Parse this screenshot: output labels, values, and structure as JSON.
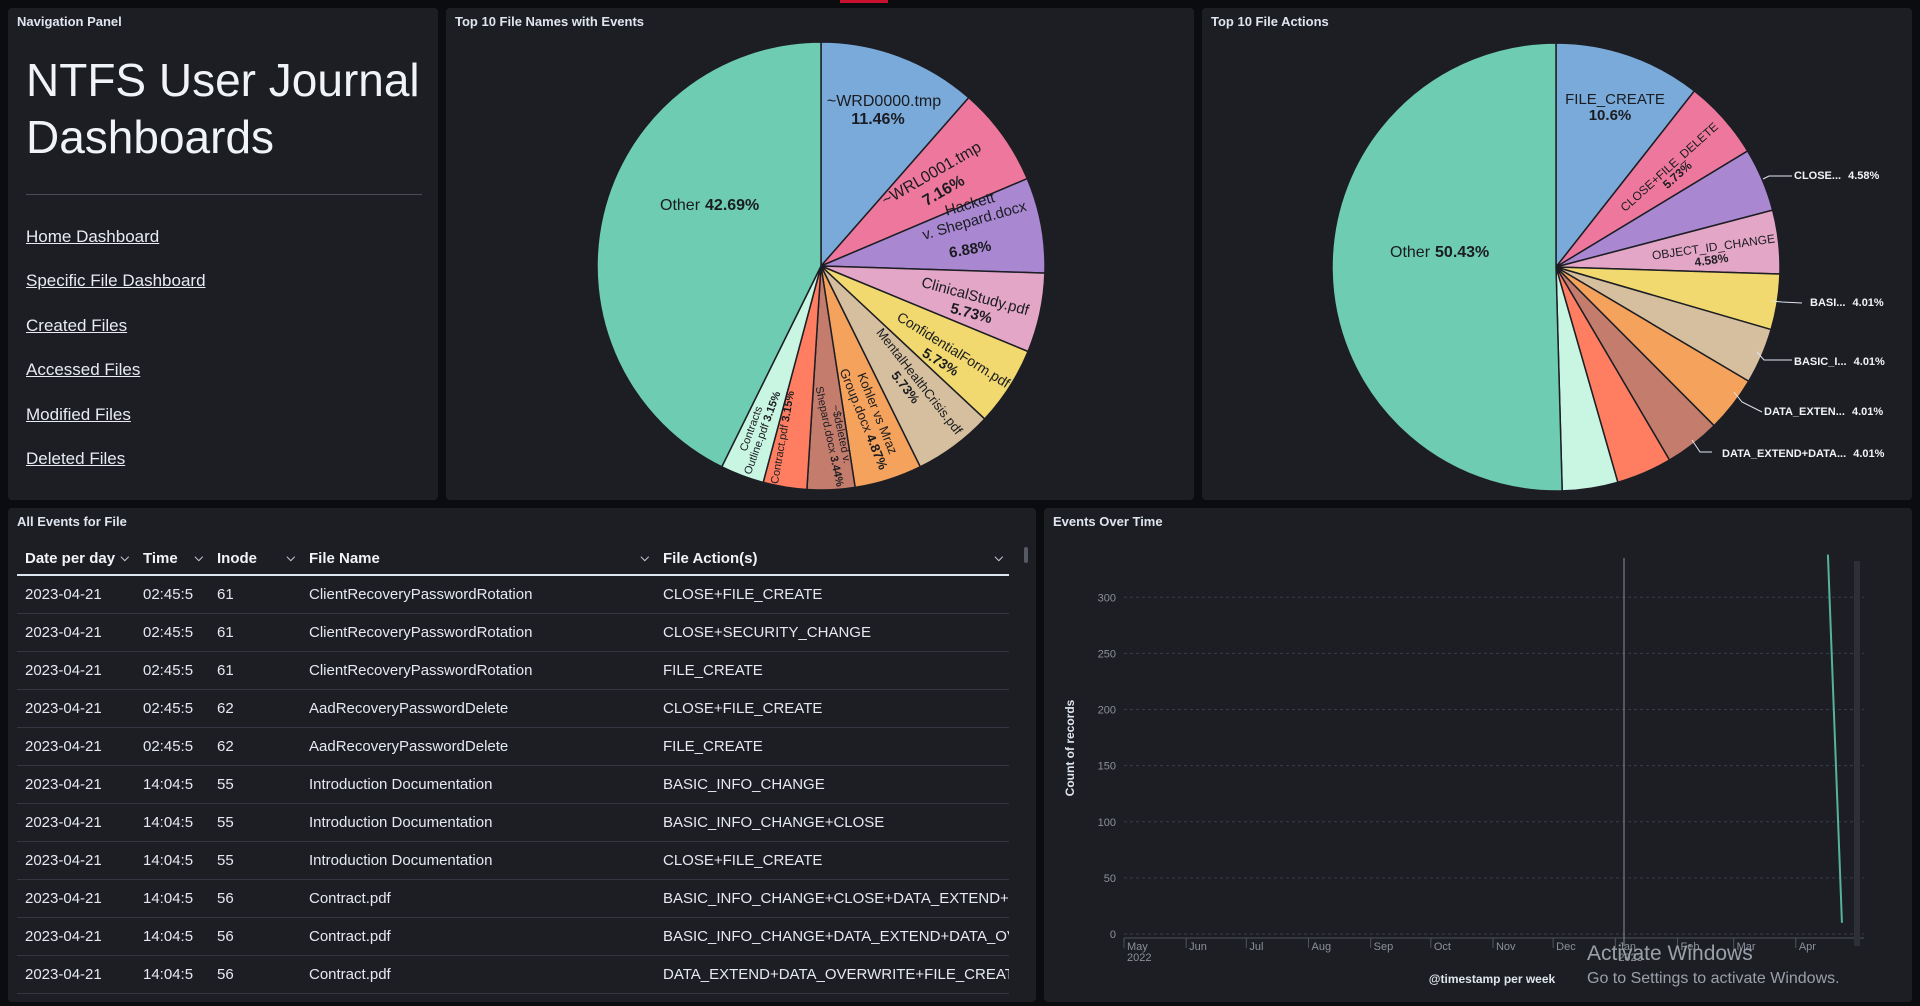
{
  "navigation_panel": {
    "title": "Navigation Panel",
    "heading": "NTFS User Journal Dashboards",
    "links": [
      {
        "label": "Home Dashboard"
      },
      {
        "label": "Specific File Dashboard"
      },
      {
        "label": "Created Files"
      },
      {
        "label": "Accessed Files"
      },
      {
        "label": "Modified Files"
      },
      {
        "label": "Deleted Files"
      }
    ]
  },
  "file_names_pie": {
    "title": "Top 10 File Names with Events",
    "chart_data": {
      "type": "pie",
      "slices": [
        {
          "label": "~WRD0000.tmp",
          "value": 11.46,
          "color": "#79aad9"
        },
        {
          "label": "~WRL0001.tmp",
          "value": 7.16,
          "color": "#ee789d"
        },
        {
          "label": "Hackett v. Shepard.docx",
          "value": 6.88,
          "color": "#a987d1"
        },
        {
          "label": "ClinicalStudy.pdf",
          "value": 5.73,
          "color": "#e4a6c7"
        },
        {
          "label": "ConfidentialForm.pdf",
          "value": 5.73,
          "color": "#f1d86f"
        },
        {
          "label": "MentalHealthCrisis.pdf",
          "value": 5.73,
          "color": "#d6bf9e"
        },
        {
          "label": "Kohler vs Mraz Group.docx",
          "value": 4.87,
          "color": "#f5a35c"
        },
        {
          "label": "Sdeleted v. Shepard.docx",
          "value": 3.44,
          "color": "#c47c6c"
        },
        {
          "label": "Contract.pdf",
          "value": 3.15,
          "color": "#ff7e62"
        },
        {
          "label": "Contracts Outline.pdf",
          "value": 3.15,
          "color": "#c9f5e3"
        },
        {
          "label": "Other",
          "value": 42.69,
          "color": "#6dccb1"
        }
      ]
    }
  },
  "file_actions_pie": {
    "title": "Top 10 File Actions",
    "chart_data": {
      "type": "pie",
      "slices": [
        {
          "label": "FILE_CREATE",
          "value": 10.6,
          "color": "#79aad9"
        },
        {
          "label": "CLOSE+FILE_DELETE",
          "value": 5.73,
          "color": "#ee789d"
        },
        {
          "label": "CLOSE...",
          "value": 4.58,
          "color": "#a987d1"
        },
        {
          "label": "OBJECT_ID_CHANGE",
          "value": 4.58,
          "color": "#e4a6c7"
        },
        {
          "label": "BASI...",
          "value": 4.01,
          "color": "#f1d86f"
        },
        {
          "label": "BASIC_I...",
          "value": 4.01,
          "color": "#d6bf9e"
        },
        {
          "label": "DATA_EXTEN...",
          "value": 4.01,
          "color": "#f5a35c"
        },
        {
          "label": "DATA_EXTEND+DATA...",
          "value": 4.01,
          "color": "#c47c6c"
        },
        {
          "label": "",
          "value": 4.01,
          "color": "#ff7e62"
        },
        {
          "label": "",
          "value": 4.01,
          "color": "#c9f5e3"
        },
        {
          "label": "Other",
          "value": 50.43,
          "color": "#6dccb1"
        }
      ],
      "text_labels": {
        "file_create": "FILE_CREATE",
        "file_create_pct": "10.6%",
        "close_delete": "CLOSE+FILE_DELETE",
        "close_delete_pct": "5.73%",
        "object_id": "OBJECT_ID_CHANGE",
        "object_id_pct": "4.58%",
        "other": "Other",
        "other_pct": "50.43%"
      },
      "outside_labels": [
        {
          "label": "CLOSE...",
          "pct": "4.58%"
        },
        {
          "label": "BASI...",
          "pct": "4.01%"
        },
        {
          "label": "BASIC_I...",
          "pct": "4.01%"
        },
        {
          "label": "DATA_EXTEN...",
          "pct": "4.01%"
        },
        {
          "label": "DATA_EXTEND+DATA...",
          "pct": "4.01%"
        }
      ]
    }
  },
  "events_table": {
    "title": "All Events for File",
    "columns": [
      "Date per day",
      "Time",
      "Inode",
      "File Name",
      "File Action(s)"
    ],
    "rows": [
      [
        "2023-04-21",
        "02:45:5",
        "61",
        "ClientRecoveryPasswordRotation",
        "CLOSE+FILE_CREATE"
      ],
      [
        "2023-04-21",
        "02:45:5",
        "61",
        "ClientRecoveryPasswordRotation",
        "CLOSE+SECURITY_CHANGE"
      ],
      [
        "2023-04-21",
        "02:45:5",
        "61",
        "ClientRecoveryPasswordRotation",
        "FILE_CREATE"
      ],
      [
        "2023-04-21",
        "02:45:5",
        "62",
        "AadRecoveryPasswordDelete",
        "CLOSE+FILE_CREATE"
      ],
      [
        "2023-04-21",
        "02:45:5",
        "62",
        "AadRecoveryPasswordDelete",
        "FILE_CREATE"
      ],
      [
        "2023-04-21",
        "14:04:5",
        "55",
        "Introduction Documentation",
        "BASIC_INFO_CHANGE"
      ],
      [
        "2023-04-21",
        "14:04:5",
        "55",
        "Introduction Documentation",
        "BASIC_INFO_CHANGE+CLOSE"
      ],
      [
        "2023-04-21",
        "14:04:5",
        "55",
        "Introduction Documentation",
        "CLOSE+FILE_CREATE"
      ],
      [
        "2023-04-21",
        "14:04:5",
        "56",
        "Contract.pdf",
        "BASIC_INFO_CHANGE+CLOSE+DATA_EXTEND+D"
      ],
      [
        "2023-04-21",
        "14:04:5",
        "56",
        "Contract.pdf",
        "BASIC_INFO_CHANGE+DATA_EXTEND+DATA_OVI"
      ],
      [
        "2023-04-21",
        "14:04:5",
        "56",
        "Contract.pdf",
        "DATA_EXTEND+DATA_OVERWRITE+FILE_CREATE"
      ]
    ]
  },
  "events_over_time": {
    "title": "Events Over Time",
    "chart_data": {
      "type": "line",
      "ylabel": "Count of records",
      "xlabel": "@timestamp per week",
      "y_ticks": [
        "0",
        "50",
        "100",
        "150",
        "200",
        "250",
        "300"
      ],
      "ylim": [
        0,
        335
      ],
      "x_ticks": [
        "May",
        "Jun",
        "Jul",
        "Aug",
        "Sep",
        "Oct",
        "Nov",
        "Dec",
        "Jan",
        "Feb",
        "Mar",
        "Apr"
      ],
      "x_year_labels": {
        "May": "2022",
        "Jan": "2023"
      },
      "series": [
        {
          "values": [
            {
              "x": "2023-04-17",
              "y": 338
            },
            {
              "x": "2023-04-24",
              "y": 10
            }
          ],
          "color": "#54b399"
        }
      ]
    }
  },
  "watermark": {
    "line1": "Activate Windows",
    "line2": "Go to Settings to activate Windows."
  }
}
